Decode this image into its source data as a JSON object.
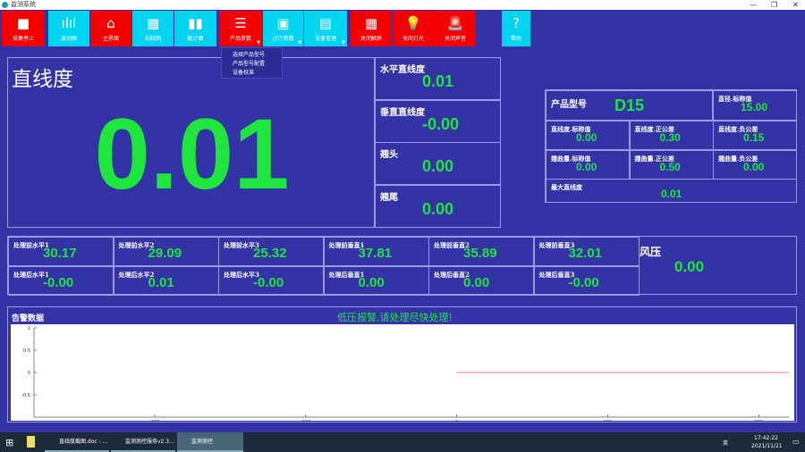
{
  "window": {
    "title": "监测系统"
  },
  "toolbar": [
    {
      "label": "采集停止",
      "icon": "stop-icon",
      "color": "#f30000"
    },
    {
      "label": "波动图",
      "icon": "waveform-icon",
      "color": "#00d4f0"
    },
    {
      "label": "主界面",
      "icon": "home-icon",
      "color": "#f30000"
    },
    {
      "label": "刻线图",
      "icon": "grid-icon",
      "color": "#00d4f0"
    },
    {
      "label": "统计图",
      "icon": "bar-chart-icon",
      "color": "#00d4f0"
    },
    {
      "label": "产品参数",
      "icon": "list-icon",
      "color": "#f30000"
    },
    {
      "label": "运行参数",
      "icon": "panel-icon",
      "color": "#00d4f0"
    },
    {
      "label": "设备管理",
      "icon": "device-icon",
      "color": "#00d4f0"
    },
    {
      "label": "关闭触屏",
      "icon": "screen-icon",
      "color": "#f30000"
    },
    {
      "label": "关闭灯光",
      "icon": "bulb-icon",
      "color": "#f30000"
    },
    {
      "label": "关闭声音",
      "icon": "alarm-icon",
      "color": "#f30000"
    },
    {
      "label": "帮助",
      "icon": "help-icon",
      "color": "#00d4f0"
    }
  ],
  "dropdown": [
    "选择产品型号",
    "产品型号配置",
    "设备校准"
  ],
  "main": {
    "title": "直线度",
    "value": "0.01"
  },
  "side": [
    {
      "label": "水平直线度",
      "value": "0.01"
    },
    {
      "label": "垂直直线度",
      "value": "-0.00"
    },
    {
      "label": "翘头",
      "value": "0.00"
    },
    {
      "label": "翘尾",
      "value": "0.00"
    }
  ],
  "product": {
    "model_label": "产品型号",
    "model": "D15",
    "diameter": {
      "label": "直径.标称值",
      "value": "15.00"
    },
    "cells": [
      {
        "label": "直线度.标称值",
        "value": "0.00"
      },
      {
        "label": "直线度.正公差",
        "value": "0.30"
      },
      {
        "label": "直线度.负公差",
        "value": "0.15"
      },
      {
        "label": "翘曲量.标称值",
        "value": "0.00"
      },
      {
        "label": "翘曲量.正公差",
        "value": "0.50"
      },
      {
        "label": "翘曲量.负公差",
        "value": "0.00"
      }
    ],
    "max": {
      "label": "最大直线度",
      "value": "0.01"
    }
  },
  "before": [
    {
      "label": "处理前水平1",
      "value": "30.17"
    },
    {
      "label": "处理前水平2",
      "value": "29.09"
    },
    {
      "label": "处理前水平3",
      "value": "25.32"
    },
    {
      "label": "处理前垂直1",
      "value": "37.81"
    },
    {
      "label": "处理前垂直2",
      "value": "35.89"
    },
    {
      "label": "处理前垂直3",
      "value": "32.01"
    }
  ],
  "after": [
    {
      "label": "处理后水平1",
      "value": "-0.00"
    },
    {
      "label": "处理后水平2",
      "value": "0.01"
    },
    {
      "label": "处理后水平3",
      "value": "-0.00"
    },
    {
      "label": "处理后垂直1",
      "value": "0.00"
    },
    {
      "label": "处理后垂直2",
      "value": "0.00"
    },
    {
      "label": "处理后垂直3",
      "value": "-0.00"
    }
  ],
  "pressure": {
    "label": "风压",
    "value": "0.00"
  },
  "alarm": {
    "title": "告警数据",
    "message": "低压报警,请处理尽快处理!"
  },
  "chart_data": {
    "type": "line",
    "xlim": [
      -280,
      220
    ],
    "ylim": [
      -1,
      1
    ],
    "xticks": [
      "-200",
      "-100",
      "0",
      "100",
      "200"
    ],
    "yticks": [
      "1",
      "0.5",
      "0",
      "-0.5"
    ],
    "series": [
      {
        "x": [
          0,
          220
        ],
        "y": [
          0,
          0
        ],
        "color": "#ff4040"
      }
    ]
  },
  "taskbar": {
    "items": [
      "直线度截图.doc - ...",
      "监测测控服务v2.3...",
      "监测测控"
    ],
    "time": "17:42:22",
    "date": "2021/11/21",
    "ime": "英"
  }
}
